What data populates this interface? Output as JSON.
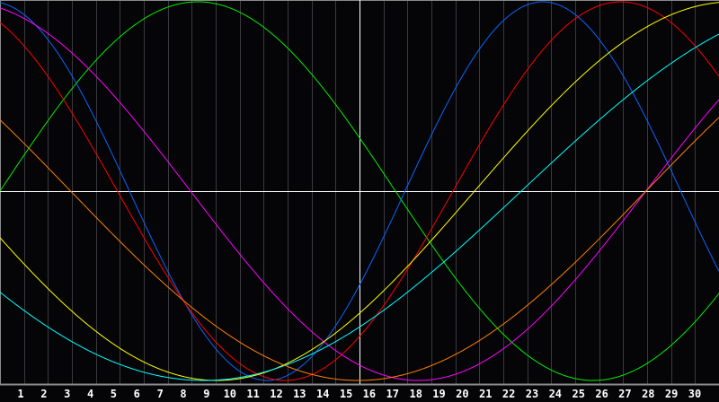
{
  "chart_data": {
    "type": "line",
    "xlim": [
      0,
      30
    ],
    "ylim": [
      -1,
      1
    ],
    "grid": true,
    "x_tick_labels": [
      "1",
      "2",
      "3",
      "4",
      "5",
      "6",
      "7",
      "8",
      "9",
      "10",
      "11",
      "12",
      "13",
      "14",
      "15",
      "16",
      "17",
      "18",
      "19",
      "20",
      "21",
      "22",
      "23",
      "24",
      "25",
      "26",
      "27",
      "28",
      "29",
      "30"
    ],
    "marker_day": 15,
    "series": [
      {
        "color": "#00ee00",
        "period_days": 33,
        "zero_crossing_up_day": 0.0
      },
      {
        "color": "#0a64ff",
        "period_days": 23,
        "zero_crossing_up_day": 16.9
      },
      {
        "color": "#ff0000",
        "period_days": 28,
        "zero_crossing_up_day": 18.9
      },
      {
        "color": "#ff00ff",
        "period_days": 38,
        "zero_crossing_up_day": 26.95
      },
      {
        "color": "#ffff00",
        "period_days": 43,
        "zero_crossing_up_day": 19.8
      },
      {
        "color": "#00ffff",
        "period_days": 53,
        "zero_crossing_up_day": 21.75
      },
      {
        "color": "#ff8000",
        "period_days": 48,
        "zero_crossing_up_day": 26.95
      }
    ]
  }
}
